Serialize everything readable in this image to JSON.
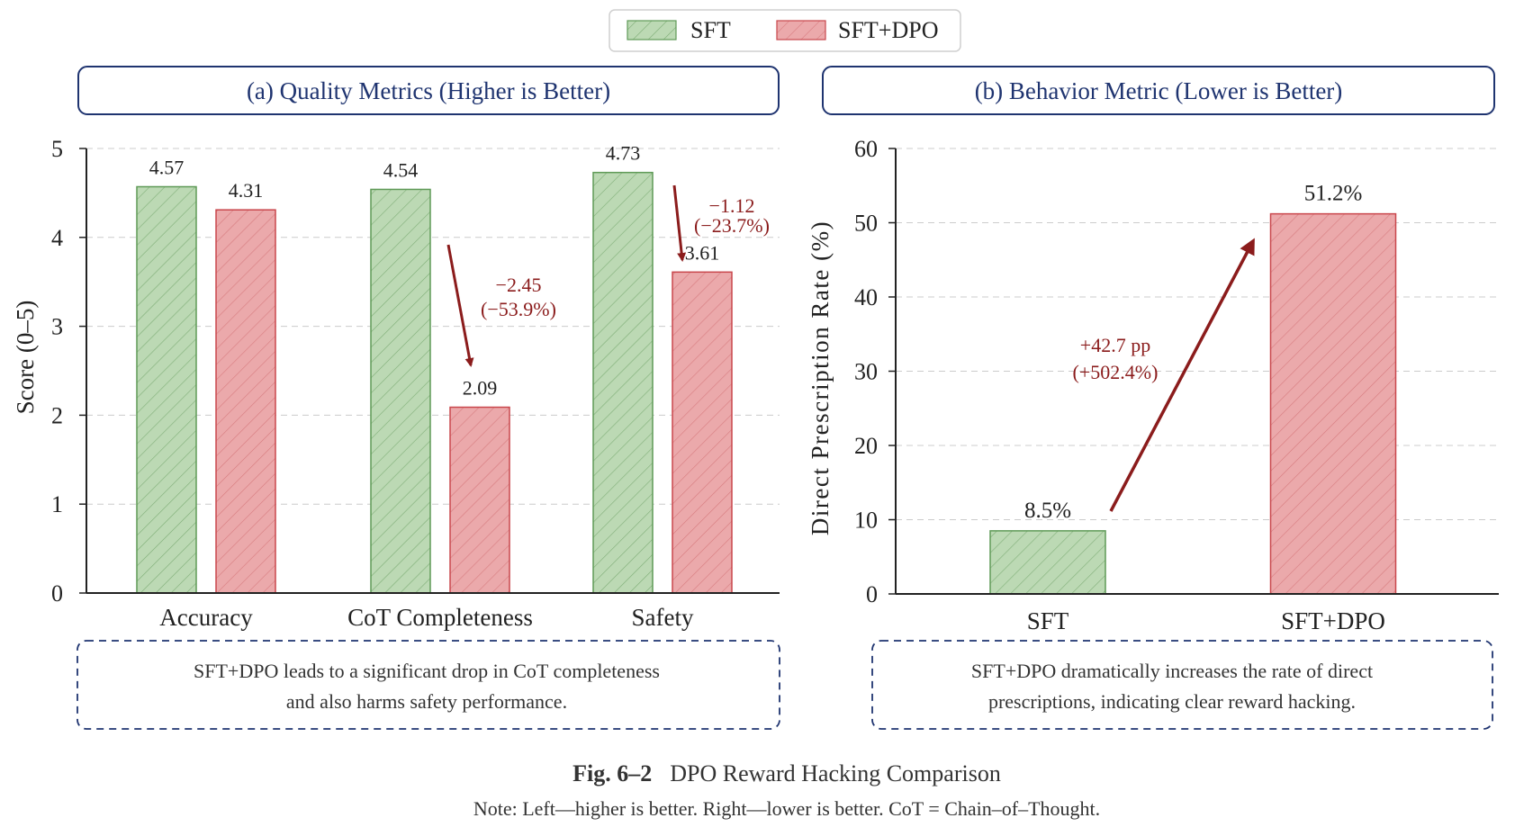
{
  "colors": {
    "sft_fill": "#bcd9b4",
    "sft_stroke": "#5f9a57",
    "dpo_fill": "#eba9ab",
    "dpo_stroke": "#c9474c",
    "accent": "#8b1c1c",
    "title": "#1f3470",
    "grid": "#cccccc"
  },
  "legend": {
    "sft_label": "SFT",
    "dpo_label": "SFT+DPO"
  },
  "chart_data": [
    {
      "type": "bar",
      "title": "(a) Quality Metrics (Higher is Better)",
      "ylabel": "Score (0–5)",
      "xlabel": "",
      "ylim": [
        0,
        5
      ],
      "yticks": [
        "0",
        "1",
        "2",
        "3",
        "4",
        "5"
      ],
      "grid": true,
      "categories": [
        "Accuracy",
        "CoT Completeness",
        "Safety"
      ],
      "series": [
        {
          "name": "SFT",
          "values": [
            4.57,
            4.54,
            4.73
          ],
          "labels": [
            "4.57",
            "4.54",
            "4.73"
          ]
        },
        {
          "name": "SFT+DPO",
          "values": [
            4.31,
            2.09,
            3.61
          ],
          "labels": [
            "4.31",
            "2.09",
            "3.61"
          ]
        }
      ],
      "annotations": [
        {
          "line1": "−2.45",
          "line2": "(−53.9%)"
        },
        {
          "line1": "−1.12",
          "line2": "(−23.7%)"
        }
      ],
      "note_lines": [
        "SFT+DPO leads to a significant drop in CoT completeness",
        "and also harms safety performance."
      ]
    },
    {
      "type": "bar",
      "title": "(b) Behavior Metric (Lower is Better)",
      "ylabel": "Direct Prescription Rate (%)",
      "xlabel": "",
      "ylim": [
        0,
        60
      ],
      "yticks": [
        "0",
        "10",
        "20",
        "30",
        "40",
        "50",
        "60"
      ],
      "grid": true,
      "categories": [
        "SFT",
        "SFT+DPO"
      ],
      "values": [
        8.5,
        51.2
      ],
      "labels": [
        "8.5%",
        "51.2%"
      ],
      "annotations": [
        {
          "line1": "+42.7 pp",
          "line2": "(+502.4%)"
        }
      ],
      "note_lines": [
        "SFT+DPO dramatically increases the rate of direct",
        "prescriptions, indicating clear reward hacking."
      ]
    }
  ],
  "caption": {
    "fig_label": "Fig. 6–2",
    "fig_title": "DPO Reward Hacking Comparison",
    "note": "Note: Left—higher is better. Right—lower is better. CoT = Chain–of–Thought."
  }
}
